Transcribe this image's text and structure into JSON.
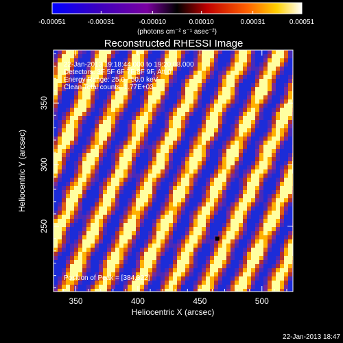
{
  "chart_data": {
    "type": "heatmap",
    "title": "Reconstructed RHESSI Image",
    "xlabel": "Heliocentric X (arcsec)",
    "ylabel": "Heliocentric Y (arcsec)",
    "xlim": [
      332,
      525
    ],
    "ylim": [
      197,
      393
    ],
    "x_ticks": [
      350,
      400,
      450,
      500
    ],
    "y_ticks": [
      250,
      300,
      350
    ],
    "colorbar": {
      "range": [
        -0.00051,
        0.00051
      ],
      "tick_labels": [
        "-0.00051",
        "-0.00031",
        "-0.00010",
        "0.00010",
        "0.00031",
        "0.00051"
      ],
      "unit_label": "(photons cm⁻² s⁻¹ asec⁻²)",
      "colors": [
        "#0000ff",
        "#3a00c0",
        "#7a00a0",
        "#000000",
        "#c00000",
        "#ff6000",
        "#ffd000",
        "#ffffff"
      ]
    },
    "annotations": {
      "time_range": "22-Jan-2013 19:18:44.000 to 19:20:08.000",
      "detectors": "Detectors: 3F 5F 6F 7F 8F 9F, Att 0",
      "energy_range": "Energy Range: 25.0 - 50.0 keV",
      "algorithm": "Clean    Total counts: 1.77E+03",
      "peak": "Position of Peak = [384,322]"
    },
    "stripe_pattern": {
      "period_arcsec": 28,
      "slope_dy_dx": 2.2,
      "field_colors": [
        "#1c2cd8",
        "#4a2ab8",
        "#7a2a98",
        "#b03030",
        "#e06010",
        "#ffb000",
        "#ffffa0"
      ]
    },
    "markers": [
      {
        "x": 464,
        "y": 240
      }
    ]
  },
  "footer": {
    "timestamp": "22-Jan-2013 18:47"
  }
}
